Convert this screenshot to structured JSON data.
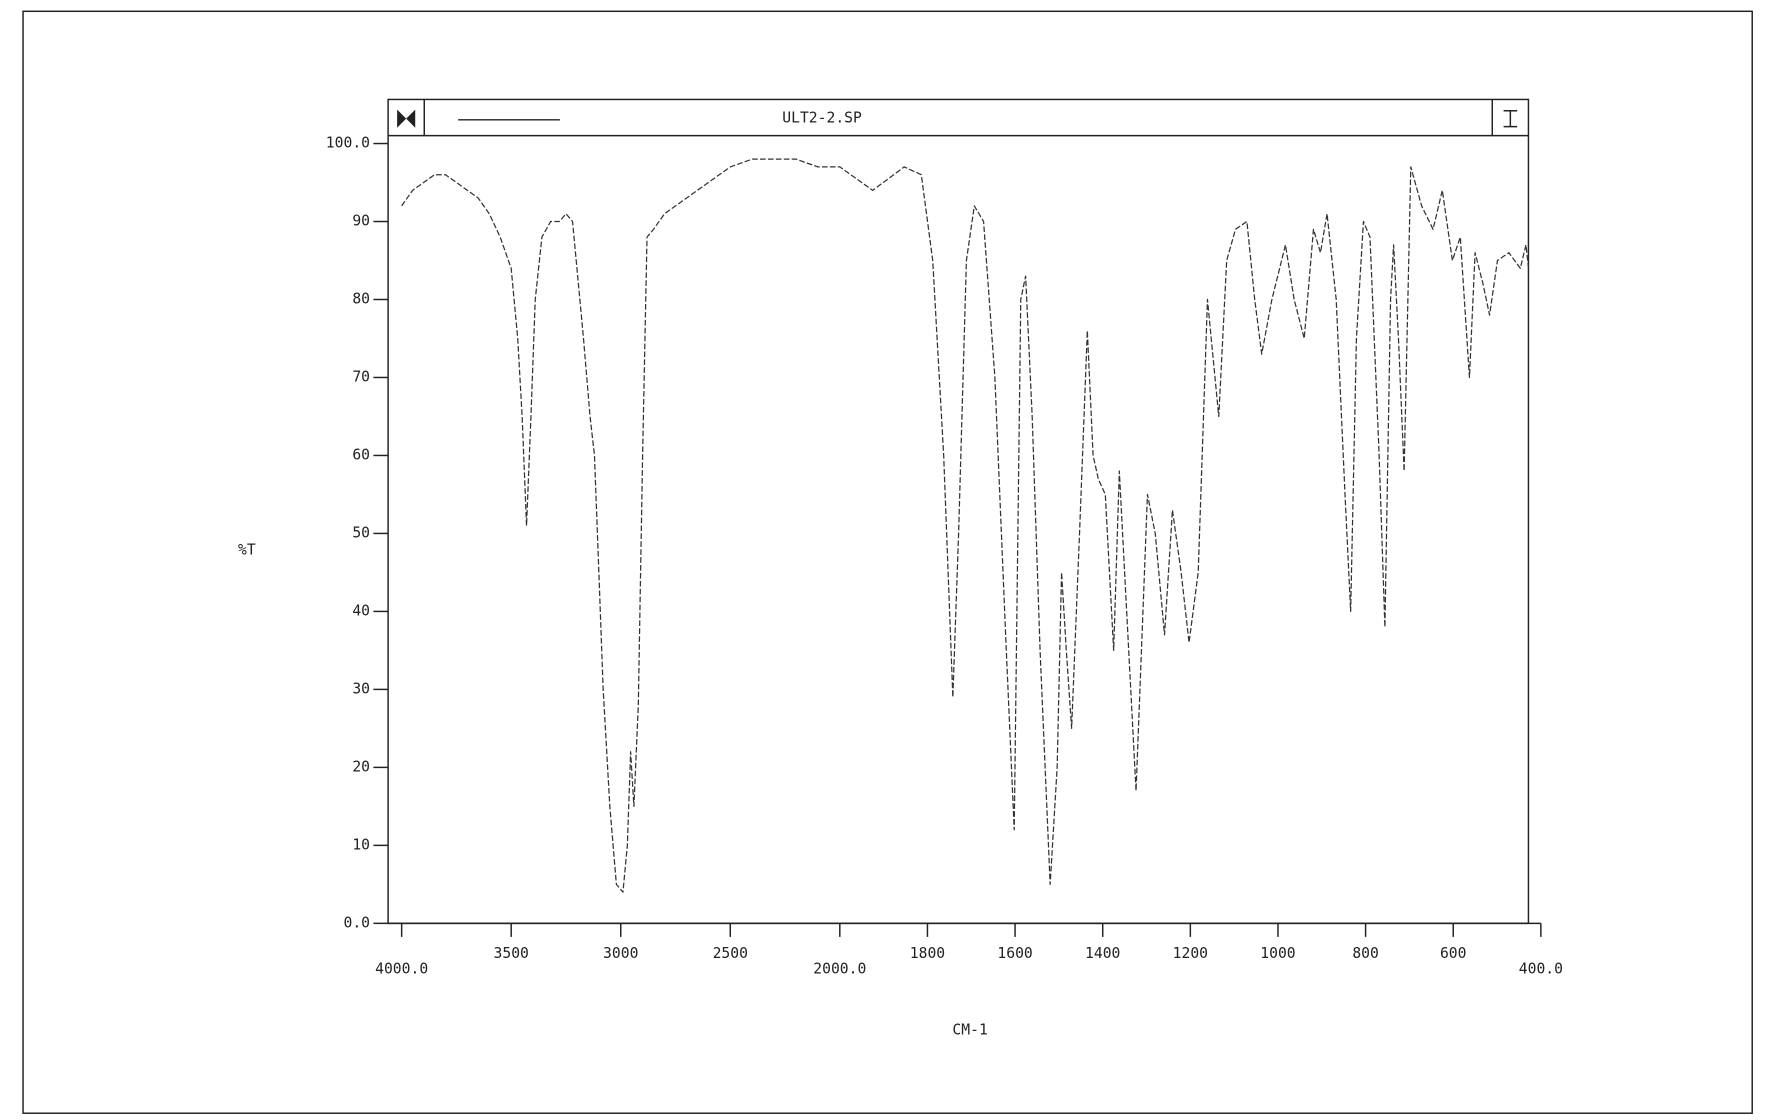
{
  "chart_data": {
    "type": "line",
    "title": "ULT2-2.SP",
    "xlabel": "CM-1",
    "ylabel": "%T",
    "x": [
      4000,
      3950,
      3900,
      3850,
      3800,
      3750,
      3700,
      3650,
      3600,
      3550,
      3500,
      3470,
      3450,
      3430,
      3410,
      3390,
      3360,
      3320,
      3280,
      3250,
      3220,
      3200,
      3170,
      3140,
      3120,
      3100,
      3080,
      3050,
      3020,
      2990,
      2970,
      2955,
      2940,
      2920,
      2900,
      2880,
      2850,
      2800,
      2700,
      2600,
      2500,
      2400,
      2300,
      2200,
      2100,
      2000,
      1925,
      1853,
      1814,
      1788,
      1763,
      1742,
      1729,
      1711,
      1693,
      1672,
      1646,
      1620,
      1602,
      1587,
      1576,
      1561,
      1543,
      1520,
      1504,
      1494,
      1483,
      1471,
      1453,
      1435,
      1422,
      1410,
      1394,
      1375,
      1362,
      1350,
      1324,
      1298,
      1280,
      1259,
      1241,
      1221,
      1203,
      1182,
      1161,
      1135,
      1117,
      1097,
      1071,
      1053,
      1037,
      1014,
      983,
      963,
      940,
      919,
      903,
      888,
      867,
      847,
      834,
      821,
      805,
      790,
      769,
      756,
      743,
      736,
      725,
      712,
      697,
      672,
      646,
      625,
      602,
      584,
      563,
      550,
      532,
      517,
      499,
      473,
      447,
      434,
      428
    ],
    "values": [
      92,
      94,
      95,
      96,
      96,
      95,
      94,
      93,
      91,
      88,
      84,
      75,
      65,
      51,
      65,
      80,
      88,
      90,
      90,
      91,
      90,
      84,
      75,
      65,
      60,
      45,
      30,
      15,
      5,
      4,
      10,
      22,
      15,
      28,
      60,
      88,
      89,
      91,
      93,
      95,
      97,
      98,
      98,
      98,
      97,
      97,
      94,
      97,
      96,
      85,
      60,
      29,
      50,
      85,
      92,
      90,
      70,
      35,
      12,
      80,
      83,
      65,
      35,
      5,
      20,
      45,
      35,
      25,
      50,
      76,
      60,
      57,
      55,
      35,
      58,
      45,
      17,
      55,
      50,
      37,
      53,
      45,
      36,
      45,
      80,
      65,
      85,
      89,
      90,
      80,
      73,
      80,
      87,
      80,
      75,
      89,
      86,
      91,
      80,
      55,
      40,
      75,
      90,
      88,
      60,
      38,
      80,
      87,
      75,
      58,
      97,
      92,
      89,
      94,
      85,
      88,
      70,
      86,
      82,
      78,
      85,
      86,
      84,
      87,
      84
    ],
    "color": "#333333",
    "xlim": [
      4000,
      400
    ],
    "x_scale_change": {
      "at": 2000,
      "factor": 2
    },
    "xticks": [
      {
        "value": 4000,
        "label": "4000.0"
      },
      3500,
      3000,
      2500,
      {
        "value": 2000,
        "label": "2000.0"
      },
      1800,
      1600,
      1400,
      1200,
      1000,
      800,
      600,
      {
        "value": 400,
        "label": "400.0"
      }
    ],
    "ylim": [
      0,
      100
    ],
    "yticks": [
      {
        "value": 0,
        "label": "0.0"
      },
      10,
      20,
      30,
      40,
      50,
      60,
      70,
      80,
      90,
      {
        "value": 100,
        "label": "100.0"
      }
    ]
  }
}
